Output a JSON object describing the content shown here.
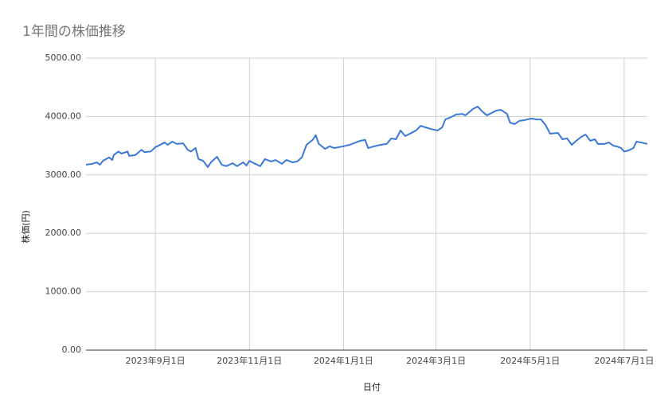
{
  "chart_data": {
    "type": "line",
    "title": "1年間の株価推移",
    "x_label": "日付",
    "y_label": "株価(円)",
    "x": [
      "2023-07-18",
      "2023-07-22",
      "2023-07-25",
      "2023-07-27",
      "2023-07-29",
      "2023-08-02",
      "2023-08-04",
      "2023-08-05",
      "2023-08-08",
      "2023-08-10",
      "2023-08-14",
      "2023-08-15",
      "2023-08-19",
      "2023-08-23",
      "2023-08-25",
      "2023-08-29",
      "2023-09-01",
      "2023-09-03",
      "2023-09-07",
      "2023-09-09",
      "2023-09-12",
      "2023-09-15",
      "2023-09-19",
      "2023-09-22",
      "2023-09-24",
      "2023-09-27",
      "2023-09-29",
      "2023-10-02",
      "2023-10-05",
      "2023-10-07",
      "2023-10-11",
      "2023-10-14",
      "2023-10-17",
      "2023-10-21",
      "2023-10-24",
      "2023-10-28",
      "2023-10-30",
      "2023-11-01",
      "2023-11-04",
      "2023-11-08",
      "2023-11-11",
      "2023-11-15",
      "2023-11-18",
      "2023-11-22",
      "2023-11-25",
      "2023-11-29",
      "2023-12-02",
      "2023-12-05",
      "2023-12-08",
      "2023-12-12",
      "2023-12-14",
      "2023-12-16",
      "2023-12-20",
      "2023-12-23",
      "2023-12-26",
      "2023-12-29",
      "2024-01-01",
      "2024-01-05",
      "2024-01-09",
      "2024-01-12",
      "2024-01-15",
      "2024-01-17",
      "2024-01-21",
      "2024-01-25",
      "2024-01-29",
      "2024-02-01",
      "2024-02-04",
      "2024-02-07",
      "2024-02-10",
      "2024-02-13",
      "2024-02-17",
      "2024-02-20",
      "2024-02-23",
      "2024-02-27",
      "2024-03-02",
      "2024-03-05",
      "2024-03-07",
      "2024-03-10",
      "2024-03-14",
      "2024-03-18",
      "2024-03-20",
      "2024-03-23",
      "2024-03-25",
      "2024-03-28",
      "2024-03-31",
      "2024-04-03",
      "2024-04-06",
      "2024-04-09",
      "2024-04-12",
      "2024-04-16",
      "2024-04-18",
      "2024-04-21",
      "2024-04-24",
      "2024-04-27",
      "2024-04-29",
      "2024-05-02",
      "2024-05-05",
      "2024-05-08",
      "2024-05-11",
      "2024-05-14",
      "2024-05-19",
      "2024-05-22",
      "2024-05-25",
      "2024-05-28",
      "2024-05-31",
      "2024-06-03",
      "2024-06-06",
      "2024-06-09",
      "2024-06-12",
      "2024-06-14",
      "2024-06-18",
      "2024-06-21",
      "2024-06-24",
      "2024-06-26",
      "2024-06-29",
      "2024-07-01",
      "2024-07-04",
      "2024-07-07",
      "2024-07-09",
      "2024-07-12",
      "2024-07-16"
    ],
    "values": [
      3175,
      3190,
      3215,
      3175,
      3240,
      3300,
      3255,
      3340,
      3400,
      3365,
      3400,
      3325,
      3340,
      3430,
      3390,
      3400,
      3475,
      3500,
      3555,
      3515,
      3570,
      3530,
      3540,
      3430,
      3400,
      3460,
      3270,
      3240,
      3135,
      3215,
      3310,
      3175,
      3150,
      3200,
      3150,
      3215,
      3160,
      3240,
      3200,
      3150,
      3270,
      3230,
      3255,
      3190,
      3255,
      3215,
      3230,
      3300,
      3515,
      3600,
      3680,
      3530,
      3445,
      3490,
      3460,
      3475,
      3490,
      3515,
      3555,
      3585,
      3600,
      3460,
      3490,
      3515,
      3530,
      3625,
      3610,
      3760,
      3665,
      3705,
      3760,
      3840,
      3815,
      3785,
      3760,
      3815,
      3950,
      3980,
      4035,
      4045,
      4020,
      4085,
      4130,
      4170,
      4085,
      4020,
      4060,
      4100,
      4115,
      4045,
      3895,
      3870,
      3925,
      3935,
      3950,
      3965,
      3950,
      3950,
      3855,
      3705,
      3720,
      3610,
      3625,
      3515,
      3585,
      3650,
      3690,
      3585,
      3610,
      3530,
      3530,
      3555,
      3500,
      3490,
      3460,
      3400,
      3420,
      3460,
      3570,
      3555,
      3530
    ],
    "color": "#3c78d8",
    "xlim": [
      "2023-07-18",
      "2024-07-16"
    ],
    "xticks": [
      {
        "value": "2023-09-01",
        "label": "2023年9月1日"
      },
      {
        "value": "2023-11-01",
        "label": "2023年11月1日"
      },
      {
        "value": "2024-01-01",
        "label": "2024年1月1日"
      },
      {
        "value": "2024-03-01",
        "label": "2024年3月1日"
      },
      {
        "value": "2024-05-01",
        "label": "2024年5月1日"
      },
      {
        "value": "2024-07-01",
        "label": "2024年7月1日"
      }
    ],
    "ylim": [
      0,
      5000
    ],
    "yticks": [
      {
        "value": 0,
        "label": "0.00"
      },
      {
        "value": 1000,
        "label": "1000.00"
      },
      {
        "value": 2000,
        "label": "2000.00"
      },
      {
        "value": 3000,
        "label": "3000.00"
      },
      {
        "value": 4000,
        "label": "4000.00"
      },
      {
        "value": 5000,
        "label": "5000.00"
      }
    ],
    "grid": true
  }
}
